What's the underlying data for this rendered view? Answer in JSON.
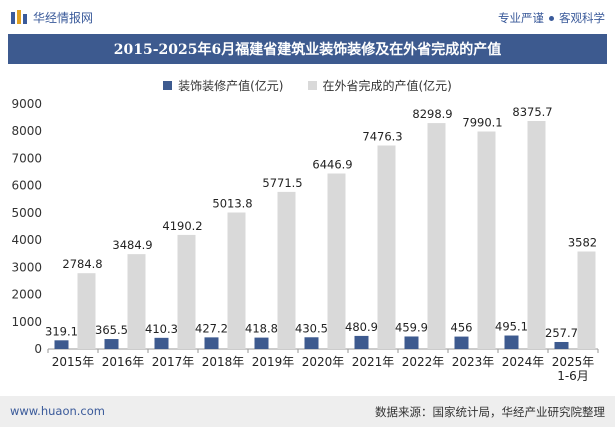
{
  "header": {
    "brand": "华经情报网",
    "tagline_left": "专业严谨",
    "tagline_right": "客观科学"
  },
  "colors": {
    "title_bg": "#3d5a8f",
    "series_decoration": "#3d5a8f",
    "series_outside": "#d9d9d9"
  },
  "chart_data": {
    "type": "bar",
    "title": "2015-2025年6月福建省建筑业装饰装修及在外省完成的产值",
    "categories": [
      "2015年",
      "2016年",
      "2017年",
      "2018年",
      "2019年",
      "2020年",
      "2021年",
      "2022年",
      "2023年",
      "2024年",
      "2025年\n1-6月"
    ],
    "series": [
      {
        "name": "装饰装修产值(亿元)",
        "values": [
          319.1,
          365.5,
          410.3,
          427.2,
          418.8,
          430.5,
          480.9,
          459.9,
          456,
          495.1,
          257.7
        ]
      },
      {
        "name": "在外省完成的产值(亿元)",
        "values": [
          2784.8,
          3484.9,
          4190.2,
          5013.8,
          5771.5,
          6446.9,
          7476.3,
          8298.9,
          7990.1,
          8375.7,
          3582
        ]
      }
    ],
    "ylim": [
      0,
      9000
    ],
    "yticks": [
      0,
      1000,
      2000,
      3000,
      4000,
      5000,
      6000,
      7000,
      8000,
      9000
    ],
    "grid": false,
    "legend_position": "top-center"
  },
  "footer": {
    "url": "www.huaon.com",
    "source": "数据来源：国家统计局，华经产业研究院整理"
  }
}
